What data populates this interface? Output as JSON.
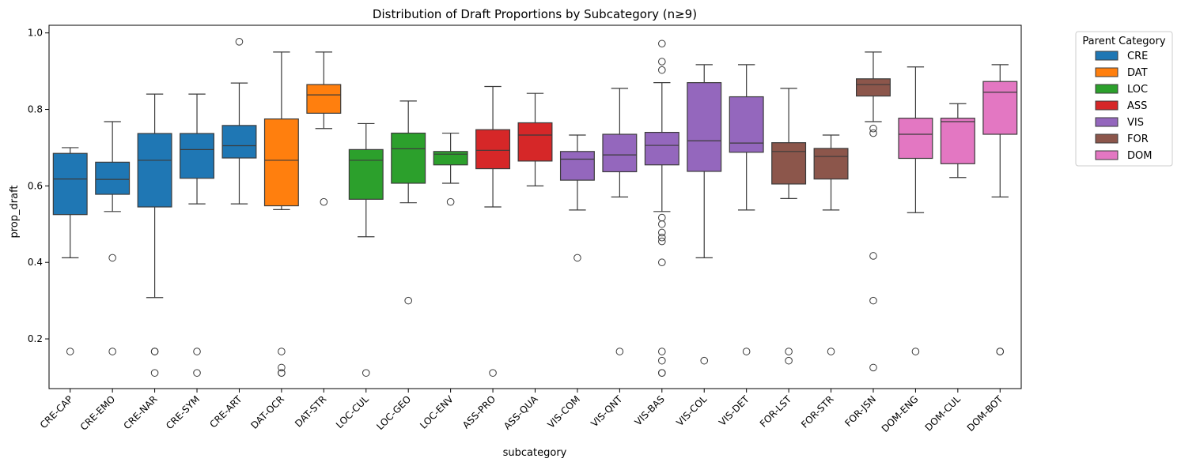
{
  "chart_data": {
    "type": "box",
    "title": "Distribution of Draft Proportions by Subcategory (n≥9)",
    "xlabel": "subcategory",
    "ylabel": "prop_draft",
    "ylim": [
      0.07,
      1.02
    ],
    "yticks": [
      0.2,
      0.4,
      0.6,
      0.8,
      1.0
    ],
    "ytick_labels": [
      "0.2",
      "0.4",
      "0.6",
      "0.8",
      "1.0"
    ],
    "grid": false,
    "legend": {
      "title": "Parent Category",
      "placement": "outside-right",
      "entries": [
        {
          "label": "CRE",
          "color": "#1f77b4"
        },
        {
          "label": "DAT",
          "color": "#ff7f0e"
        },
        {
          "label": "LOC",
          "color": "#2ca02c"
        },
        {
          "label": "ASS",
          "color": "#d62728"
        },
        {
          "label": "VIS",
          "color": "#9467bd"
        },
        {
          "label": "FOR",
          "color": "#8c564b"
        },
        {
          "label": "DOM",
          "color": "#e377c2"
        }
      ]
    },
    "boxes": [
      {
        "label": "CRE-CAP",
        "parent": "CRE",
        "whislo": 0.412,
        "q1": 0.525,
        "median": 0.618,
        "q3": 0.685,
        "whishi": 0.7,
        "fliers": [
          0.167
        ]
      },
      {
        "label": "CRE-EMO",
        "parent": "CRE",
        "whislo": 0.533,
        "q1": 0.578,
        "median": 0.617,
        "q3": 0.662,
        "whishi": 0.768,
        "fliers": [
          0.412,
          0.167
        ]
      },
      {
        "label": "CRE-NAR",
        "parent": "CRE",
        "whislo": 0.308,
        "q1": 0.545,
        "median": 0.667,
        "q3": 0.737,
        "whishi": 0.84,
        "fliers": [
          0.167,
          0.167,
          0.111
        ]
      },
      {
        "label": "CRE-SYM",
        "parent": "CRE",
        "whislo": 0.553,
        "q1": 0.62,
        "median": 0.695,
        "q3": 0.737,
        "whishi": 0.84,
        "fliers": [
          0.167,
          0.111
        ]
      },
      {
        "label": "CRE-ART",
        "parent": "CRE",
        "whislo": 0.553,
        "q1": 0.673,
        "median": 0.705,
        "q3": 0.758,
        "whishi": 0.869,
        "fliers": [
          0.977
        ]
      },
      {
        "label": "DAT-OCR",
        "parent": "DAT",
        "whislo": 0.538,
        "q1": 0.548,
        "median": 0.667,
        "q3": 0.775,
        "whishi": 0.95,
        "fliers": [
          0.167,
          0.125,
          0.111,
          0.111
        ]
      },
      {
        "label": "DAT-STR",
        "parent": "DAT",
        "whislo": 0.75,
        "q1": 0.79,
        "median": 0.838,
        "q3": 0.865,
        "whishi": 0.95,
        "fliers": [
          0.558
        ]
      },
      {
        "label": "LOC-CUL",
        "parent": "LOC",
        "whislo": 0.467,
        "q1": 0.565,
        "median": 0.667,
        "q3": 0.695,
        "whishi": 0.763,
        "fliers": [
          0.111
        ]
      },
      {
        "label": "LOC-GEO",
        "parent": "LOC",
        "whislo": 0.556,
        "q1": 0.607,
        "median": 0.697,
        "q3": 0.738,
        "whishi": 0.822,
        "fliers": [
          0.3
        ]
      },
      {
        "label": "LOC-ENV",
        "parent": "LOC",
        "whislo": 0.607,
        "q1": 0.655,
        "median": 0.683,
        "q3": 0.69,
        "whishi": 0.738,
        "fliers": [
          0.558
        ]
      },
      {
        "label": "ASS-PRO",
        "parent": "ASS",
        "whislo": 0.545,
        "q1": 0.645,
        "median": 0.693,
        "q3": 0.747,
        "whishi": 0.86,
        "fliers": [
          0.111
        ]
      },
      {
        "label": "ASS-QUA",
        "parent": "ASS",
        "whislo": 0.6,
        "q1": 0.665,
        "median": 0.733,
        "q3": 0.765,
        "whishi": 0.842,
        "fliers": []
      },
      {
        "label": "VIS-COM",
        "parent": "VIS",
        "whislo": 0.537,
        "q1": 0.615,
        "median": 0.67,
        "q3": 0.69,
        "whishi": 0.733,
        "fliers": [
          0.412
        ]
      },
      {
        "label": "VIS-QNT",
        "parent": "VIS",
        "whislo": 0.571,
        "q1": 0.637,
        "median": 0.681,
        "q3": 0.735,
        "whishi": 0.855,
        "fliers": [
          0.167
        ]
      },
      {
        "label": "VIS-BAS",
        "parent": "VIS",
        "whislo": 0.533,
        "q1": 0.655,
        "median": 0.706,
        "q3": 0.74,
        "whishi": 0.87,
        "fliers": [
          0.972,
          0.925,
          0.903,
          0.517,
          0.5,
          0.478,
          0.465,
          0.455,
          0.4,
          0.167,
          0.143,
          0.111,
          0.111
        ]
      },
      {
        "label": "VIS-COL",
        "parent": "VIS",
        "whislo": 0.412,
        "q1": 0.638,
        "median": 0.718,
        "q3": 0.87,
        "whishi": 0.917,
        "fliers": [
          0.143
        ]
      },
      {
        "label": "VIS-DET",
        "parent": "VIS",
        "whislo": 0.537,
        "q1": 0.688,
        "median": 0.712,
        "q3": 0.833,
        "whishi": 0.917,
        "fliers": [
          0.167
        ]
      },
      {
        "label": "FOR-LST",
        "parent": "FOR",
        "whislo": 0.567,
        "q1": 0.605,
        "median": 0.69,
        "q3": 0.713,
        "whishi": 0.855,
        "fliers": [
          0.167,
          0.143
        ]
      },
      {
        "label": "FOR-STR",
        "parent": "FOR",
        "whislo": 0.537,
        "q1": 0.618,
        "median": 0.677,
        "q3": 0.698,
        "whishi": 0.733,
        "fliers": [
          0.167
        ]
      },
      {
        "label": "FOR-JSN",
        "parent": "FOR",
        "whislo": 0.768,
        "q1": 0.835,
        "median": 0.865,
        "q3": 0.88,
        "whishi": 0.95,
        "fliers": [
          0.75,
          0.738,
          0.417,
          0.3,
          0.125
        ]
      },
      {
        "label": "DOM-ENG",
        "parent": "DOM",
        "whislo": 0.53,
        "q1": 0.672,
        "median": 0.735,
        "q3": 0.777,
        "whishi": 0.911,
        "fliers": [
          0.167
        ]
      },
      {
        "label": "DOM-CUL",
        "parent": "DOM",
        "whislo": 0.622,
        "q1": 0.658,
        "median": 0.768,
        "q3": 0.777,
        "whishi": 0.815,
        "fliers": []
      },
      {
        "label": "DOM-BOT",
        "parent": "DOM",
        "whislo": 0.571,
        "q1": 0.735,
        "median": 0.845,
        "q3": 0.873,
        "whishi": 0.917,
        "fliers": [
          0.167,
          0.167
        ]
      }
    ]
  }
}
